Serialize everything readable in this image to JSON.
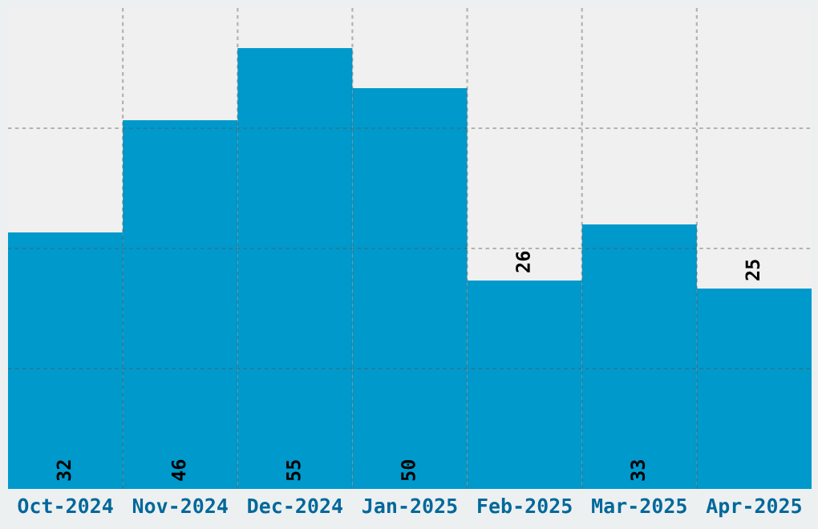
{
  "chart_data": {
    "type": "bar",
    "categories": [
      "Oct-2024",
      "Nov-2024",
      "Dec-2024",
      "Jan-2025",
      "Feb-2025",
      "Mar-2025",
      "Apr-2025"
    ],
    "values": [
      32,
      46,
      55,
      50,
      26,
      33,
      25
    ],
    "color": "#0099cc",
    "relative": false,
    "ylim": [
      0,
      60
    ],
    "yticks": [
      {
        "value": 15,
        "label": null
      },
      {
        "value": 30,
        "label": null
      },
      {
        "value": 45,
        "label": null
      }
    ],
    "tick_labels": "x",
    "grid": true,
    "data_labels": true
  }
}
